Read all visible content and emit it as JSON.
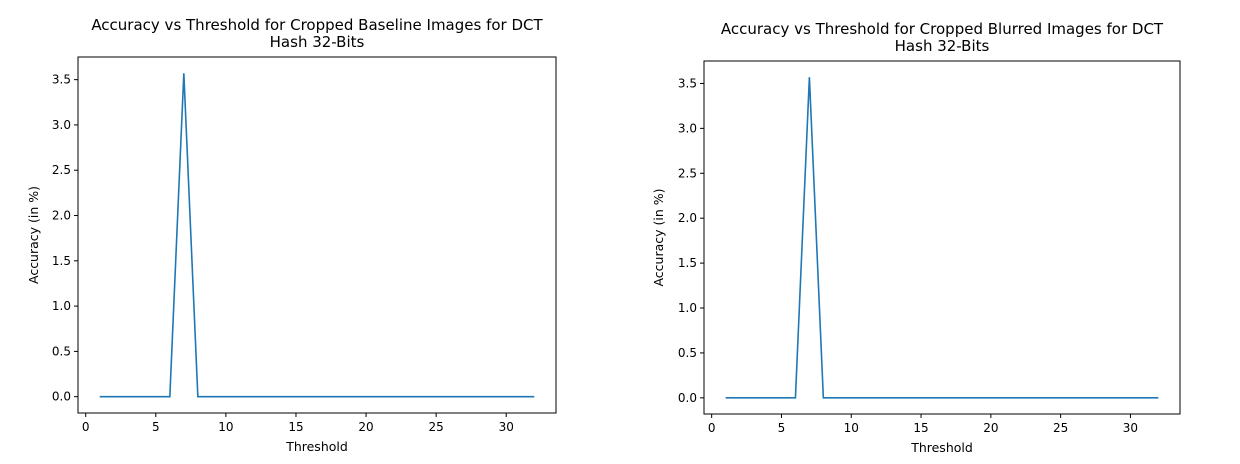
{
  "colors": {
    "series": "#1f77b4"
  },
  "chart_data": [
    {
      "type": "line",
      "title_lines": [
        "Accuracy vs Threshold for Cropped Baseline Images for DCT",
        "Hash 32-Bits"
      ],
      "xlabel": "Threshold",
      "ylabel": "Accuracy (in %)",
      "xlim": [
        -0.55,
        33.55
      ],
      "ylim": [
        -0.18,
        3.75
      ],
      "xticks": [
        0,
        5,
        10,
        15,
        20,
        25,
        30
      ],
      "xtick_labels": [
        "0",
        "5",
        "10",
        "15",
        "20",
        "25",
        "30"
      ],
      "yticks": [
        0.0,
        0.5,
        1.0,
        1.5,
        2.0,
        2.5,
        3.0,
        3.5
      ],
      "ytick_labels": [
        "0.0",
        "0.5",
        "1.0",
        "1.5",
        "2.0",
        "2.5",
        "3.0",
        "3.5"
      ],
      "grid": false,
      "series": [
        {
          "x": [
            1,
            2,
            3,
            4,
            5,
            6,
            7,
            8,
            9,
            10,
            11,
            12,
            13,
            14,
            15,
            16,
            17,
            18,
            19,
            20,
            21,
            22,
            23,
            24,
            25,
            26,
            27,
            28,
            29,
            30,
            31,
            32
          ],
          "values": [
            0,
            0,
            0,
            0,
            0,
            0,
            3.57,
            0,
            0,
            0,
            0,
            0,
            0,
            0,
            0,
            0,
            0,
            0,
            0,
            0,
            0,
            0,
            0,
            0,
            0,
            0,
            0,
            0,
            0,
            0,
            0,
            0
          ]
        }
      ]
    },
    {
      "type": "line",
      "title_lines": [
        "Accuracy vs Threshold for Cropped Blurred Images for DCT",
        "Hash 32-Bits"
      ],
      "xlabel": "Threshold",
      "ylabel": "Accuracy (in %)",
      "xlim": [
        -0.55,
        33.55
      ],
      "ylim": [
        -0.18,
        3.75
      ],
      "xticks": [
        0,
        5,
        10,
        15,
        20,
        25,
        30
      ],
      "xtick_labels": [
        "0",
        "5",
        "10",
        "15",
        "20",
        "25",
        "30"
      ],
      "yticks": [
        0.0,
        0.5,
        1.0,
        1.5,
        2.0,
        2.5,
        3.0,
        3.5
      ],
      "ytick_labels": [
        "0.0",
        "0.5",
        "1.0",
        "1.5",
        "2.0",
        "2.5",
        "3.0",
        "3.5"
      ],
      "grid": false,
      "series": [
        {
          "x": [
            1,
            2,
            3,
            4,
            5,
            6,
            7,
            8,
            9,
            10,
            11,
            12,
            13,
            14,
            15,
            16,
            17,
            18,
            19,
            20,
            21,
            22,
            23,
            24,
            25,
            26,
            27,
            28,
            29,
            30,
            31,
            32
          ],
          "values": [
            0,
            0,
            0,
            0,
            0,
            0,
            3.57,
            0,
            0,
            0,
            0,
            0,
            0,
            0,
            0,
            0,
            0,
            0,
            0,
            0,
            0,
            0,
            0,
            0,
            0,
            0,
            0,
            0,
            0,
            0,
            0,
            0
          ]
        }
      ]
    }
  ]
}
